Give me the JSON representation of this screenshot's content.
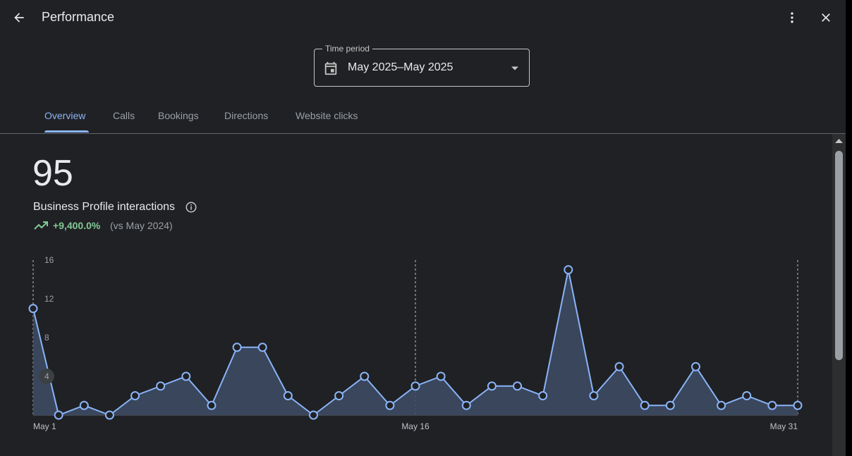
{
  "header": {
    "title": "Performance",
    "back_icon": "arrow-back-icon",
    "more_icon": "more-vert-icon",
    "close_icon": "close-icon"
  },
  "time_period": {
    "label": "Time period",
    "value": "May 2025–May 2025"
  },
  "tabs": [
    {
      "label": "Overview",
      "active": true
    },
    {
      "label": "Calls",
      "active": false
    },
    {
      "label": "Bookings",
      "active": false
    },
    {
      "label": "Directions",
      "active": false
    },
    {
      "label": "Website clicks",
      "active": false
    }
  ],
  "summary": {
    "total": "95",
    "label": "Business Profile interactions",
    "trend_value": "+9,400.0%",
    "trend_compare": "(vs May 2024)"
  },
  "colors": {
    "accent": "#8ab4f8",
    "trend_up": "#81c995",
    "background": "#202124"
  },
  "chart_data": {
    "type": "area",
    "x_tick_labels": [
      "May 1",
      "May 16",
      "May 31"
    ],
    "y_ticks": [
      4,
      8,
      12,
      16
    ],
    "ylim": [
      0,
      16
    ],
    "x": [
      1,
      2,
      3,
      4,
      5,
      6,
      7,
      8,
      9,
      10,
      11,
      12,
      13,
      14,
      15,
      16,
      17,
      18,
      19,
      20,
      21,
      22,
      23,
      24,
      25,
      26,
      27,
      28,
      29,
      30,
      31
    ],
    "values": [
      11,
      0,
      1,
      0,
      2,
      3,
      4,
      1,
      7,
      7,
      2,
      0,
      2,
      4,
      1,
      3,
      4,
      1,
      3,
      3,
      2,
      15,
      2,
      5,
      1,
      1,
      5,
      1,
      2,
      1,
      1
    ],
    "grid": "vertical dashed at tick dates"
  }
}
